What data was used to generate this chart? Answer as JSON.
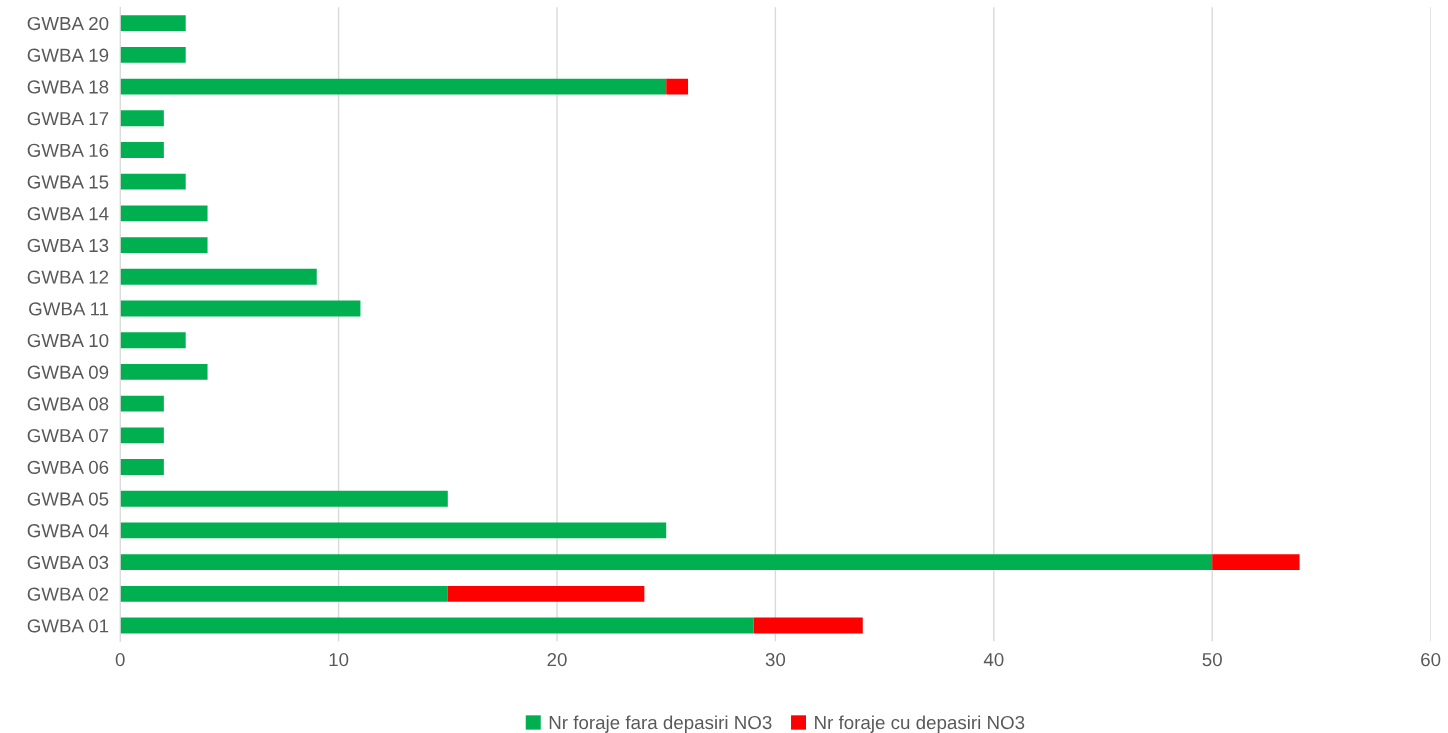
{
  "chart_data": {
    "type": "bar",
    "orientation": "horizontal",
    "stacked": true,
    "categories": [
      "GWBA 20",
      "GWBA 19",
      "GWBA 18",
      "GWBA 17",
      "GWBA 16",
      "GWBA 15",
      "GWBA 14",
      "GWBA 13",
      "GWBA 12",
      "GWBA 11",
      "GWBA 10",
      "GWBA 09",
      "GWBA 08",
      "GWBA 07",
      "GWBA 06",
      "GWBA 05",
      "GWBA 04",
      "GWBA 03",
      "GWBA 02",
      "GWBA 01"
    ],
    "series": [
      {
        "name": "Nr foraje fara depasiri NO3",
        "color": "#00b050",
        "values": [
          3,
          3,
          25,
          2,
          2,
          3,
          4,
          4,
          9,
          11,
          3,
          4,
          2,
          2,
          2,
          15,
          25,
          50,
          15,
          29
        ]
      },
      {
        "name": "Nr foraje cu depasiri NO3",
        "color": "#ff0000",
        "values": [
          0,
          0,
          1,
          0,
          0,
          0,
          0,
          0,
          0,
          0,
          0,
          0,
          0,
          0,
          0,
          0,
          0,
          4,
          9,
          5
        ]
      }
    ],
    "xlim": [
      0,
      60
    ],
    "xticks": [
      0,
      10,
      20,
      30,
      40,
      50,
      60
    ],
    "grid": "x",
    "legend": "bottom"
  }
}
